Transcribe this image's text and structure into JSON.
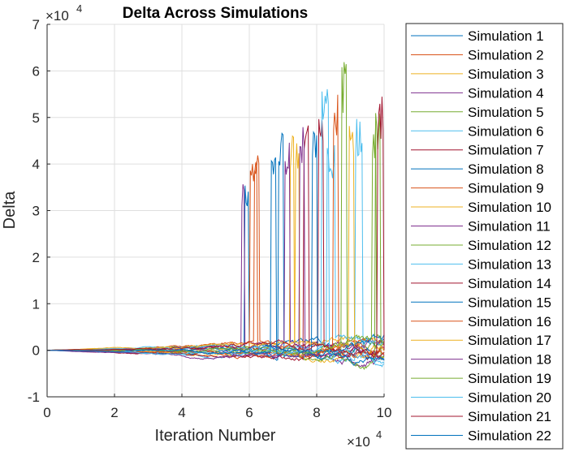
{
  "chart_data": {
    "type": "line",
    "title": "Delta Across Simulations",
    "xlabel": "Iteration Number",
    "ylabel": "Delta",
    "x_exponent_label": "×10",
    "x_exponent_power": "4",
    "y_exponent_label": "×10",
    "y_exponent_power": "4",
    "xlim": [
      0,
      100000
    ],
    "ylim": [
      -10000,
      70000
    ],
    "x_ticks": [
      0,
      20000,
      40000,
      60000,
      80000,
      100000
    ],
    "x_tick_labels": [
      "0",
      "2",
      "4",
      "6",
      "8",
      "10"
    ],
    "y_ticks": [
      -10000,
      0,
      10000,
      20000,
      30000,
      40000,
      50000,
      60000,
      70000
    ],
    "y_tick_labels": [
      "-1",
      "0",
      "1",
      "2",
      "3",
      "4",
      "5",
      "6",
      "7"
    ],
    "grid": true,
    "legend_position": "outside-right",
    "colors": [
      "#0072BD",
      "#D95319",
      "#EDB120",
      "#7E2F8E",
      "#77AC30",
      "#4DBEEE",
      "#A2142F"
    ],
    "series": [
      {
        "name": "Simulation 1",
        "spike_start": 58500,
        "spike_end": 59800,
        "peak": 37500,
        "drift": 1200
      },
      {
        "name": "Simulation 2",
        "spike_start": 60200,
        "spike_end": 62200,
        "peak": 44000,
        "drift": -1500
      },
      {
        "name": "Simulation 3",
        "spike_start": 72000,
        "spike_end": 73200,
        "peak": 47000,
        "drift": 1800
      },
      {
        "name": "Simulation 4",
        "spike_start": 57800,
        "spike_end": 58700,
        "peak": 36000,
        "drift": -800
      },
      {
        "name": "Simulation 5",
        "spike_start": 87500,
        "spike_end": 89000,
        "peak": 62000,
        "drift": 1000
      },
      {
        "name": "Simulation 6",
        "spike_start": 91500,
        "spike_end": 93500,
        "peak": 50500,
        "drift": -2000
      },
      {
        "name": "Simulation 7",
        "spike_start": 80500,
        "spike_end": 82000,
        "peak": 50000,
        "drift": 600
      },
      {
        "name": "Simulation 8",
        "spike_start": 68500,
        "spike_end": 70000,
        "peak": 47500,
        "drift": -2300
      },
      {
        "name": "Simulation 9",
        "spike_start": 61500,
        "spike_end": 63000,
        "peak": 45000,
        "drift": 1400
      },
      {
        "name": "Simulation 10",
        "spike_start": 73500,
        "spike_end": 74800,
        "peak": 46000,
        "drift": -1100
      },
      {
        "name": "Simulation 11",
        "spike_start": 70500,
        "spike_end": 72000,
        "peak": 45500,
        "drift": 900
      },
      {
        "name": "Simulation 12",
        "spike_start": 97500,
        "spike_end": 99000,
        "peak": 51000,
        "drift": -400
      },
      {
        "name": "Simulation 13",
        "spike_start": 83000,
        "spike_end": 85500,
        "peak": 45000,
        "drift": 1600
      },
      {
        "name": "Simulation 14",
        "spike_start": 76000,
        "spike_end": 77800,
        "peak": 50500,
        "drift": -1700
      },
      {
        "name": "Simulation 15",
        "spike_start": 78500,
        "spike_end": 80000,
        "peak": 50000,
        "drift": 300
      },
      {
        "name": "Simulation 16",
        "spike_start": 85000,
        "spike_end": 86500,
        "peak": 56000,
        "drift": -900
      },
      {
        "name": "Simulation 17",
        "spike_start": 89500,
        "spike_end": 91000,
        "peak": 51000,
        "drift": 2100
      },
      {
        "name": "Simulation 18",
        "spike_start": 75000,
        "spike_end": 76500,
        "peak": 49000,
        "drift": -2600
      },
      {
        "name": "Simulation 19",
        "spike_start": 96500,
        "spike_end": 97800,
        "peak": 50000,
        "drift": 700
      },
      {
        "name": "Simulation 20",
        "spike_start": 81500,
        "spike_end": 83500,
        "peak": 59000,
        "drift": -1300
      },
      {
        "name": "Simulation 21",
        "spike_start": 98000,
        "spike_end": 99700,
        "peak": 54500,
        "drift": 1900
      },
      {
        "name": "Simulation 22",
        "spike_start": 66500,
        "spike_end": 68000,
        "peak": 42000,
        "drift": -600
      }
    ]
  }
}
